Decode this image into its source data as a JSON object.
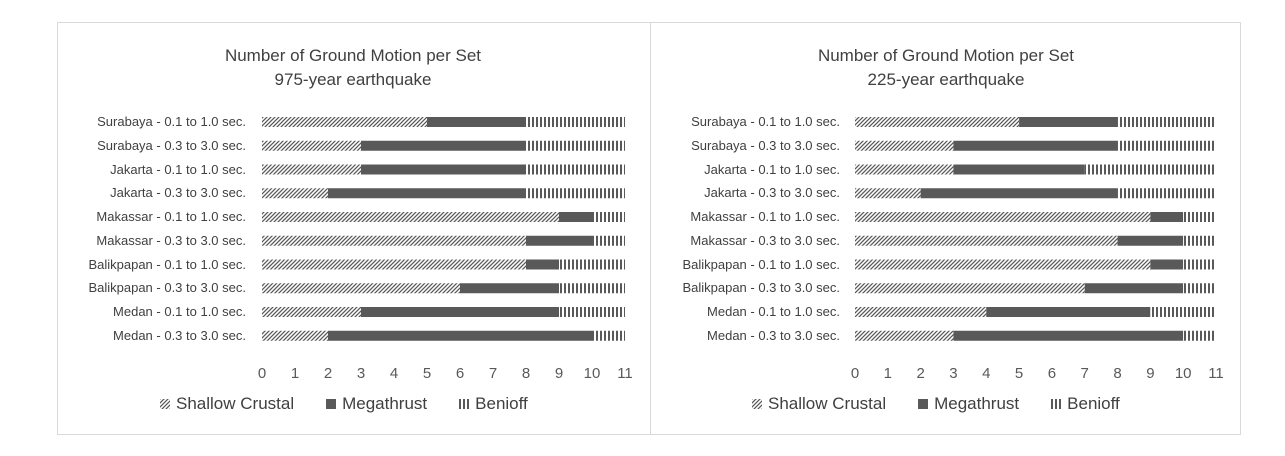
{
  "chart_data": [
    {
      "type": "bar",
      "orientation": "horizontal",
      "stacked": true,
      "title": "Number of Ground Motion per Set",
      "subtitle": "975-year earthquake",
      "categories": [
        "Surabaya - 0.1 to 1.0 sec.",
        "Surabaya - 0.3 to 3.0 sec.",
        "Jakarta - 0.1 to 1.0 sec.",
        "Jakarta - 0.3 to 3.0 sec.",
        "Makassar - 0.1 to 1.0 sec.",
        "Makassar - 0.3 to 3.0 sec.",
        "Balikpapan - 0.1 to 1.0 sec.",
        "Balikpapan - 0.3 to 3.0 sec.",
        "Medan - 0.1 to 1.0 sec.",
        "Medan - 0.3 to 3.0 sec."
      ],
      "series": [
        {
          "name": "Shallow Crustal",
          "values": [
            5,
            3,
            3,
            2,
            9,
            8,
            8,
            6,
            3,
            2
          ]
        },
        {
          "name": "Megathrust",
          "values": [
            3,
            5,
            5,
            6,
            1,
            2,
            1,
            3,
            6,
            8
          ]
        },
        {
          "name": "Benioff",
          "values": [
            3,
            3,
            3,
            3,
            1,
            1,
            2,
            2,
            2,
            1
          ]
        }
      ],
      "xlim": [
        0,
        11
      ],
      "xticks": [
        "0",
        "1",
        "2",
        "3",
        "4",
        "5",
        "6",
        "7",
        "8",
        "9",
        "10",
        "11"
      ],
      "legend_position": "bottom",
      "grid": false
    },
    {
      "type": "bar",
      "orientation": "horizontal",
      "stacked": true,
      "title": "Number of Ground Motion per Set",
      "subtitle": "225-year earthquake",
      "categories": [
        "Surabaya - 0.1 to 1.0 sec.",
        "Surabaya - 0.3 to 3.0 sec.",
        "Jakarta - 0.1 to 1.0 sec.",
        "Jakarta - 0.3 to 3.0 sec.",
        "Makassar - 0.1 to 1.0 sec.",
        "Makassar - 0.3 to 3.0 sec.",
        "Balikpapan - 0.1 to 1.0 sec.",
        "Balikpapan - 0.3 to 3.0 sec.",
        "Medan - 0.1 to 1.0 sec.",
        "Medan - 0.3 to 3.0 sec."
      ],
      "series": [
        {
          "name": "Shallow Crustal",
          "values": [
            5,
            3,
            3,
            2,
            9,
            8,
            9,
            7,
            4,
            3
          ]
        },
        {
          "name": "Megathrust",
          "values": [
            3,
            5,
            4,
            6,
            1,
            2,
            1,
            3,
            5,
            7
          ]
        },
        {
          "name": "Benioff",
          "values": [
            3,
            3,
            4,
            3,
            1,
            1,
            1,
            1,
            2,
            1
          ]
        }
      ],
      "xlim": [
        0,
        11
      ],
      "xticks": [
        "0",
        "1",
        "2",
        "3",
        "4",
        "5",
        "6",
        "7",
        "8",
        "9",
        "10",
        "11"
      ],
      "legend_position": "bottom",
      "grid": false
    }
  ],
  "colors": {
    "shallow_crustal": "#595959",
    "megathrust": "#595959",
    "benioff": "#595959",
    "frame": "#d9d9d9",
    "text": "#404040"
  }
}
